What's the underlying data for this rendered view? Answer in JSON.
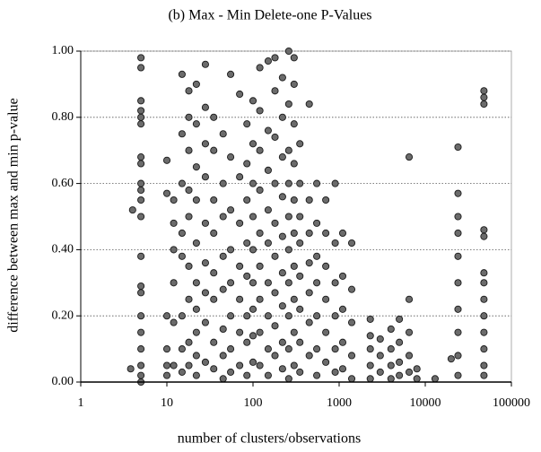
{
  "chart_data": {
    "type": "scatter",
    "title": "(b) Max - Min Delete-one P-Values",
    "xlabel": "number of clusters/observations",
    "ylabel": "difference between max and min p-value",
    "xscale": "log",
    "xlim": [
      1,
      100000
    ],
    "xticks": [
      1,
      10,
      100,
      1000,
      10000,
      100000
    ],
    "ylim": [
      0,
      1
    ],
    "yticks": [
      {
        "value": 0,
        "label": "0.00"
      },
      {
        "value": 0.2,
        "label": "0.20"
      },
      {
        "value": 0.4,
        "label": "0.40"
      },
      {
        "value": 0.6,
        "label": "0.60"
      },
      {
        "value": 0.8,
        "label": "0.80"
      },
      {
        "value": 1,
        "label": "1.00"
      }
    ],
    "grid": true,
    "color": "#6b6b6b",
    "x": [
      5,
      5,
      5,
      5,
      5,
      5,
      5,
      5,
      5,
      5,
      5,
      5,
      5,
      5,
      5,
      5,
      5,
      5,
      5,
      5,
      5,
      4,
      3.8,
      10,
      10,
      10,
      10,
      10,
      10,
      12,
      12,
      12,
      12,
      12,
      12,
      15,
      15,
      15,
      15,
      15,
      15,
      15,
      15,
      18,
      18,
      18,
      18,
      18,
      18,
      18,
      18,
      18,
      22,
      22,
      22,
      22,
      22,
      22,
      22,
      22,
      22,
      22,
      28,
      28,
      28,
      28,
      28,
      28,
      28,
      28,
      28,
      35,
      35,
      35,
      35,
      35,
      35,
      35,
      35,
      45,
      45,
      45,
      45,
      45,
      45,
      45,
      45,
      55,
      55,
      55,
      55,
      55,
      55,
      55,
      55,
      70,
      70,
      70,
      70,
      70,
      70,
      70,
      85,
      85,
      85,
      85,
      85,
      85,
      85,
      85,
      100,
      100,
      100,
      100,
      100,
      100,
      100,
      100,
      100,
      120,
      120,
      120,
      120,
      120,
      120,
      120,
      120,
      120,
      150,
      150,
      150,
      150,
      150,
      150,
      150,
      150,
      150,
      180,
      180,
      180,
      180,
      180,
      180,
      180,
      180,
      180,
      220,
      220,
      220,
      220,
      220,
      220,
      220,
      220,
      220,
      260,
      260,
      260,
      260,
      260,
      260,
      260,
      260,
      260,
      260,
      300,
      300,
      300,
      300,
      300,
      300,
      300,
      300,
      300,
      300,
      350,
      350,
      350,
      350,
      350,
      350,
      350,
      350,
      450,
      450,
      450,
      450,
      450,
      450,
      450,
      550,
      550,
      550,
      550,
      550,
      550,
      550,
      700,
      700,
      700,
      700,
      700,
      700,
      900,
      900,
      900,
      900,
      900,
      900,
      1100,
      1100,
      1100,
      1100,
      1100,
      1400,
      1400,
      1400,
      1400,
      1400,
      2300,
      2300,
      2300,
      2300,
      2300,
      3000,
      3000,
      3000,
      4000,
      4000,
      4000,
      4000,
      5000,
      5000,
      5000,
      5000,
      6500,
      6500,
      6500,
      6500,
      6500,
      8000,
      8000,
      13000,
      20000,
      24000,
      24000,
      24000,
      24000,
      24000,
      24000,
      24000,
      24000,
      24000,
      24000,
      48000,
      48000,
      48000,
      48000,
      48000,
      48000,
      48000,
      48000,
      48000,
      48000,
      48000,
      48000,
      48000
    ],
    "values": [
      0.98,
      0.95,
      0.85,
      0.82,
      0.8,
      0.78,
      0.68,
      0.66,
      0.6,
      0.58,
      0.55,
      0.5,
      0.38,
      0.29,
      0.27,
      0.2,
      0.15,
      0.1,
      0.05,
      0.02,
      0,
      0.52,
      0.04,
      0.67,
      0.57,
      0.2,
      0.1,
      0.05,
      0.02,
      0.55,
      0.48,
      0.4,
      0.3,
      0.18,
      0.05,
      0.93,
      0.75,
      0.6,
      0.45,
      0.38,
      0.2,
      0.1,
      0.03,
      0.88,
      0.8,
      0.7,
      0.58,
      0.5,
      0.35,
      0.25,
      0.12,
      0.05,
      0.9,
      0.78,
      0.65,
      0.55,
      0.42,
      0.3,
      0.22,
      0.15,
      0.08,
      0.02,
      0.96,
      0.83,
      0.72,
      0.62,
      0.48,
      0.36,
      0.27,
      0.18,
      0.06,
      0.8,
      0.7,
      0.55,
      0.45,
      0.33,
      0.25,
      0.12,
      0.04,
      0.75,
      0.6,
      0.5,
      0.38,
      0.28,
      0.16,
      0.08,
      0.01,
      0.93,
      0.68,
      0.52,
      0.4,
      0.3,
      0.2,
      0.1,
      0.03,
      0.87,
      0.62,
      0.48,
      0.35,
      0.25,
      0.15,
      0.05,
      0.78,
      0.66,
      0.55,
      0.42,
      0.32,
      0.2,
      0.12,
      0.02,
      0.85,
      0.72,
      0.6,
      0.5,
      0.4,
      0.3,
      0.22,
      0.14,
      0.06,
      0.95,
      0.82,
      0.7,
      0.58,
      0.45,
      0.35,
      0.25,
      0.15,
      0.05,
      0.97,
      0.76,
      0.64,
      0.52,
      0.42,
      0.3,
      0.2,
      0.1,
      0.02,
      0.98,
      0.88,
      0.74,
      0.6,
      0.48,
      0.38,
      0.27,
      0.17,
      0.08,
      0.92,
      0.8,
      0.68,
      0.56,
      0.44,
      0.33,
      0.23,
      0.12,
      0.04,
      1.0,
      0.84,
      0.7,
      0.6,
      0.5,
      0.4,
      0.3,
      0.2,
      0.1,
      0.01,
      0.98,
      0.9,
      0.78,
      0.66,
      0.55,
      0.45,
      0.35,
      0.25,
      0.15,
      0.05,
      0.72,
      0.6,
      0.5,
      0.42,
      0.32,
      0.22,
      0.12,
      0.03,
      0.84,
      0.55,
      0.45,
      0.36,
      0.27,
      0.18,
      0.08,
      0.6,
      0.48,
      0.38,
      0.3,
      0.2,
      0.1,
      0.02,
      0.55,
      0.45,
      0.35,
      0.25,
      0.15,
      0.06,
      0.6,
      0.42,
      0.3,
      0.2,
      0.1,
      0.03,
      0.45,
      0.32,
      0.22,
      0.12,
      0.04,
      0.42,
      0.28,
      0.18,
      0.08,
      0.01,
      0.19,
      0.14,
      0.1,
      0.05,
      0.01,
      0.13,
      0.08,
      0.03,
      0.16,
      0.1,
      0.05,
      0.01,
      0.19,
      0.12,
      0.06,
      0.02,
      0.68,
      0.25,
      0.15,
      0.08,
      0.03,
      0.04,
      0.01,
      0.01,
      0.07,
      0.71,
      0.57,
      0.5,
      0.45,
      0.38,
      0.3,
      0.22,
      0.15,
      0.08,
      0.02,
      0.88,
      0.86,
      0.84,
      0.46,
      0.44,
      0.33,
      0.3,
      0.25,
      0.2,
      0.15,
      0.1,
      0.05,
      0.02
    ]
  }
}
